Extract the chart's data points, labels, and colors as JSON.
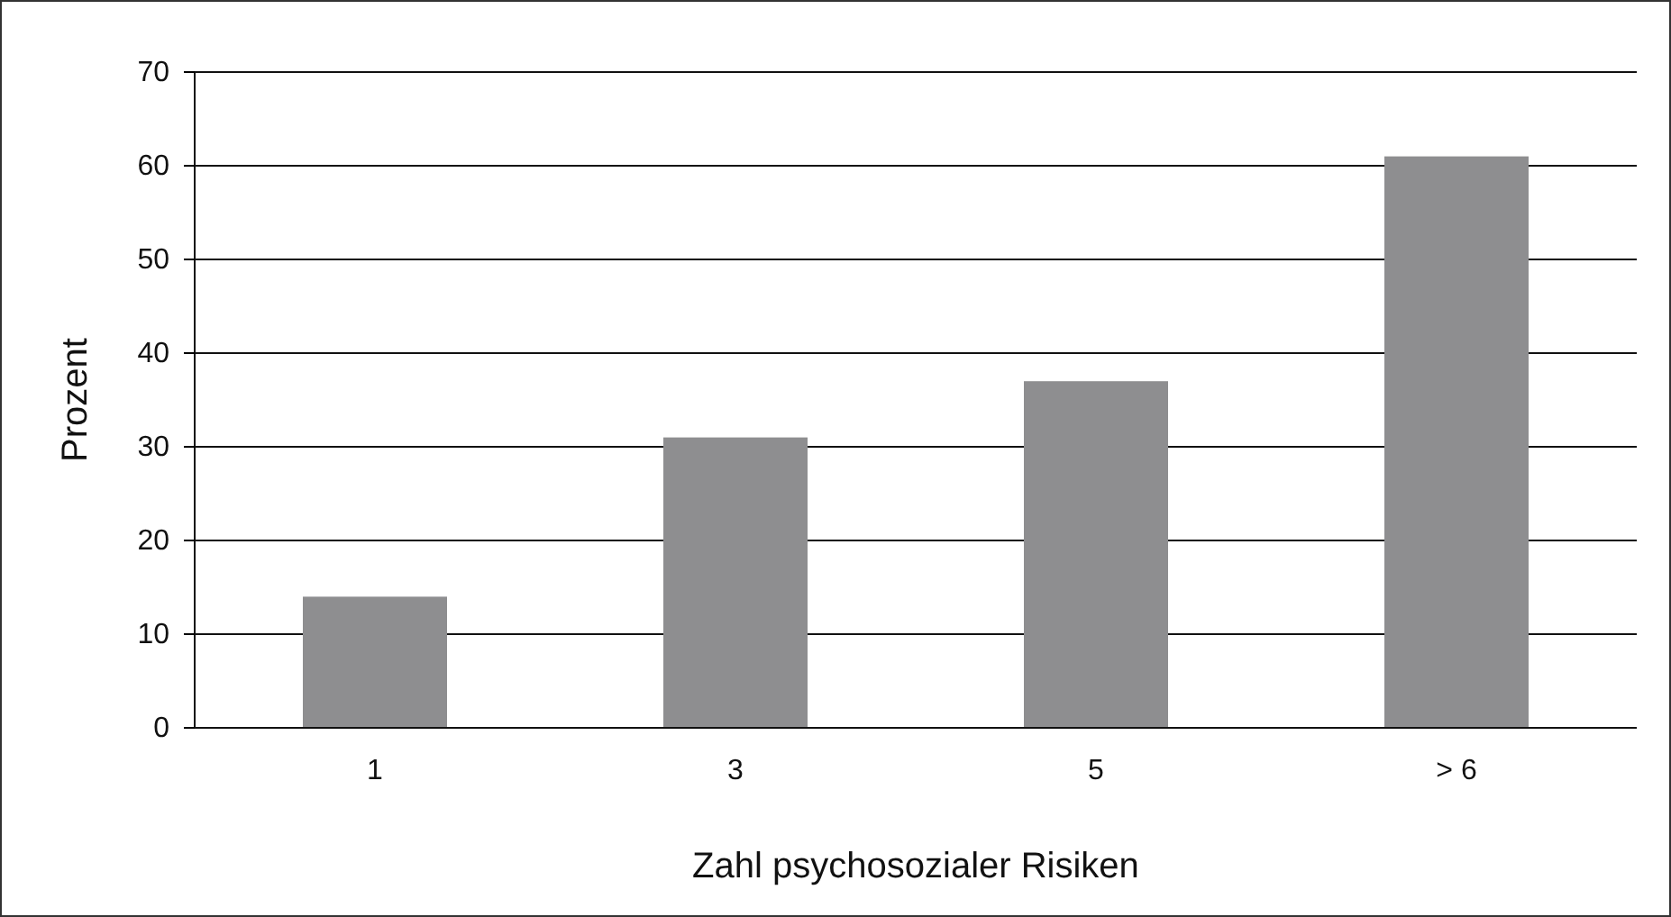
{
  "chart_data": {
    "type": "bar",
    "xlabel": "Zahl psychosozialer Risiken",
    "ylabel": "Prozent",
    "categories": [
      "1",
      "3",
      "5",
      "> 6"
    ],
    "values": [
      14,
      31,
      37,
      61
    ],
    "color": "#8e8e90",
    "ylim": [
      0,
      70
    ],
    "yticks": [
      0,
      10,
      20,
      30,
      40,
      50,
      60,
      70
    ],
    "grid": "y"
  }
}
